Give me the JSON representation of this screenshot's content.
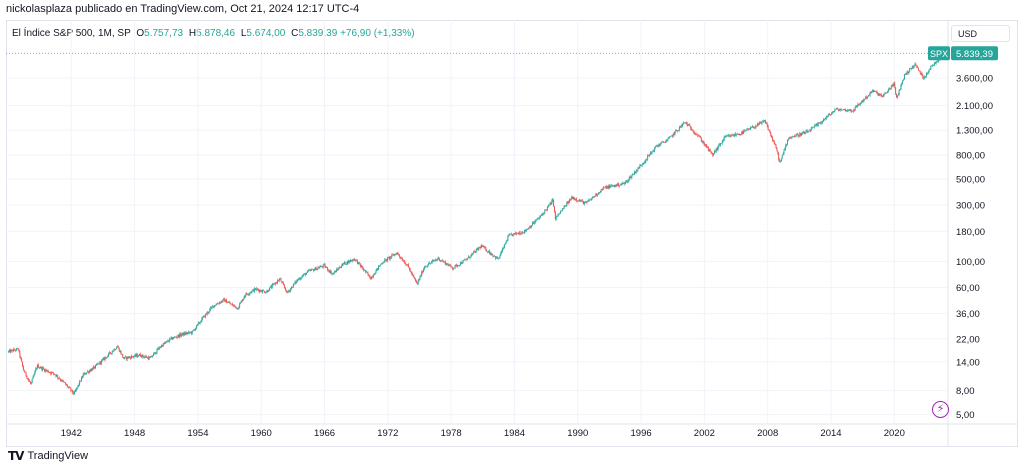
{
  "header": {
    "publisher_line": "nickolasplaza publicado en TradingView.com, Oct 21, 2024 12:17 UTC-4"
  },
  "legend": {
    "symbol": "El Índice S&P 500, 1M, SP",
    "open_label": "O",
    "open": "5.757,73",
    "high_label": "H",
    "high": "5.878,46",
    "low_label": "L",
    "low": "5.674,00",
    "close_label": "C",
    "close": "5.839,39",
    "change": "+76,90 (+1,33%)"
  },
  "currency": "USD",
  "price_tag": {
    "ticker": "SPX",
    "value": "5.839,39",
    "color": "#26a69a"
  },
  "footer": {
    "brand": "TradingView"
  },
  "colors": {
    "up": "#26a69a",
    "down": "#ef5350",
    "grid": "#f0f3fa",
    "text": "#131722"
  },
  "chart_data": {
    "type": "candlestick",
    "title": "El Índice S&P 500, 1M, SP",
    "y_scale": "log",
    "ylim": [
      4.5,
      7000
    ],
    "xlim": [
      1936.0,
      2024.9
    ],
    "y_ticks": [
      {
        "value": 5,
        "label": "5,00"
      },
      {
        "value": 8,
        "label": "8,00"
      },
      {
        "value": 14,
        "label": "14,00"
      },
      {
        "value": 22,
        "label": "22,00"
      },
      {
        "value": 36,
        "label": "36,00"
      },
      {
        "value": 60,
        "label": "60,00"
      },
      {
        "value": 100,
        "label": "100,00"
      },
      {
        "value": 180,
        "label": "180,00"
      },
      {
        "value": 300,
        "label": "300,00"
      },
      {
        "value": 500,
        "label": "500,00"
      },
      {
        "value": 800,
        "label": "800,00"
      },
      {
        "value": 1300,
        "label": "1.300,00"
      },
      {
        "value": 2100,
        "label": "2.100,00"
      },
      {
        "value": 3600,
        "label": "3.600,00"
      }
    ],
    "x_ticks": [
      {
        "value": 1942,
        "label": "1942"
      },
      {
        "value": 1948,
        "label": "1948"
      },
      {
        "value": 1954,
        "label": "1954"
      },
      {
        "value": 1960,
        "label": "1960"
      },
      {
        "value": 1966,
        "label": "1966"
      },
      {
        "value": 1972,
        "label": "1972"
      },
      {
        "value": 1978,
        "label": "1978"
      },
      {
        "value": 1984,
        "label": "1984"
      },
      {
        "value": 1990,
        "label": "1990"
      },
      {
        "value": 1996,
        "label": "1996"
      },
      {
        "value": 2002,
        "label": "2002"
      },
      {
        "value": 2008,
        "label": "2008"
      },
      {
        "value": 2014,
        "label": "2014"
      },
      {
        "value": 2020,
        "label": "2020"
      }
    ],
    "price_path": [
      [
        1936.0,
        17
      ],
      [
        1937.0,
        18
      ],
      [
        1937.5,
        12
      ],
      [
        1938.2,
        9
      ],
      [
        1938.8,
        13
      ],
      [
        1939.5,
        12
      ],
      [
        1940.5,
        11
      ],
      [
        1941.5,
        9
      ],
      [
        1942.3,
        7.5
      ],
      [
        1943.2,
        11
      ],
      [
        1944.2,
        12.5
      ],
      [
        1945.2,
        15
      ],
      [
        1946.4,
        19
      ],
      [
        1947.0,
        15
      ],
      [
        1948.5,
        16
      ],
      [
        1949.5,
        15
      ],
      [
        1950.5,
        19
      ],
      [
        1951.5,
        22
      ],
      [
        1952.5,
        24
      ],
      [
        1953.5,
        25
      ],
      [
        1954.5,
        33
      ],
      [
        1955.5,
        42
      ],
      [
        1956.5,
        47
      ],
      [
        1957.8,
        40
      ],
      [
        1958.5,
        52
      ],
      [
        1959.5,
        58
      ],
      [
        1960.5,
        55
      ],
      [
        1961.8,
        71
      ],
      [
        1962.5,
        54
      ],
      [
        1963.5,
        70
      ],
      [
        1964.5,
        82
      ],
      [
        1966.0,
        92
      ],
      [
        1966.8,
        78
      ],
      [
        1967.8,
        95
      ],
      [
        1968.9,
        105
      ],
      [
        1970.4,
        72
      ],
      [
        1971.5,
        98
      ],
      [
        1972.9,
        118
      ],
      [
        1973.9,
        92
      ],
      [
        1974.8,
        64
      ],
      [
        1975.5,
        90
      ],
      [
        1976.8,
        106
      ],
      [
        1978.2,
        88
      ],
      [
        1979.5,
        104
      ],
      [
        1980.9,
        135
      ],
      [
        1982.5,
        104
      ],
      [
        1983.5,
        165
      ],
      [
        1985.0,
        180
      ],
      [
        1986.5,
        240
      ],
      [
        1987.7,
        330
      ],
      [
        1987.9,
        230
      ],
      [
        1989.5,
        350
      ],
      [
        1990.8,
        310
      ],
      [
        1992.5,
        420
      ],
      [
        1994.5,
        460
      ],
      [
        1996.0,
        650
      ],
      [
        1997.5,
        950
      ],
      [
        1998.6,
        1080
      ],
      [
        2000.2,
        1520
      ],
      [
        2001.5,
        1150
      ],
      [
        2002.8,
        800
      ],
      [
        2004.0,
        1130
      ],
      [
        2005.5,
        1220
      ],
      [
        2007.8,
        1550
      ],
      [
        2008.9,
        880
      ],
      [
        2009.2,
        680
      ],
      [
        2010.0,
        1120
      ],
      [
        2011.8,
        1250
      ],
      [
        2013.0,
        1500
      ],
      [
        2014.5,
        1950
      ],
      [
        2016.1,
        1910
      ],
      [
        2018.0,
        2800
      ],
      [
        2018.95,
        2500
      ],
      [
        2020.0,
        3230
      ],
      [
        2020.25,
        2400
      ],
      [
        2021.0,
        3800
      ],
      [
        2022.0,
        4700
      ],
      [
        2022.8,
        3600
      ],
      [
        2023.5,
        4450
      ],
      [
        2024.8,
        5839.39
      ]
    ],
    "last": 5839.39
  }
}
